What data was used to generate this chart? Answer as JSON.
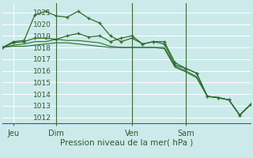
{
  "bg_color": "#cceaea",
  "grid_color": "#ffffff",
  "line_color": "#2d6e2d",
  "marker_color": "#2d6e2d",
  "xlabel_text": "Pression niveau de la mer( hPa )",
  "ylim": [
    1011.5,
    1021.8
  ],
  "yticks": [
    1012,
    1013,
    1014,
    1015,
    1016,
    1017,
    1018,
    1019,
    1020,
    1021
  ],
  "xtick_labels": [
    "Jeu",
    "Dim",
    "Ven",
    "Sam"
  ],
  "xtick_positions": [
    1,
    5,
    12,
    17
  ],
  "vline_positions": [
    5,
    12,
    17
  ],
  "n_points": 24,
  "series": [
    [
      1018.0,
      1018.5,
      1018.6,
      1020.8,
      1021.1,
      1020.7,
      1020.6,
      1021.1,
      1020.5,
      1020.1,
      1019.0,
      1018.5,
      1018.8,
      1018.3,
      1018.5,
      1018.5,
      1016.7,
      1016.2,
      1015.8,
      1013.8,
      1013.7,
      1013.5,
      1012.2,
      1013.1
    ],
    [
      1018.0,
      1018.4,
      1018.5,
      1018.8,
      1018.8,
      1018.7,
      1019.0,
      1019.2,
      1018.9,
      1019.0,
      1018.5,
      1018.8,
      1019.0,
      1018.3,
      1018.5,
      1018.3,
      1016.5,
      1016.2,
      1015.8,
      1013.8,
      1013.7,
      1013.5,
      1012.2,
      1013.1
    ],
    [
      1018.0,
      1018.2,
      1018.3,
      1018.5,
      1018.5,
      1018.7,
      1018.6,
      1018.6,
      1018.5,
      1018.4,
      1018.1,
      1018.0,
      1018.0,
      1018.0,
      1018.0,
      1018.0,
      1016.4,
      1016.0,
      1015.5,
      1013.8,
      1013.7,
      1013.5,
      1012.2,
      1013.1
    ],
    [
      1018.0,
      1018.1,
      1018.1,
      1018.2,
      1018.3,
      1018.4,
      1018.4,
      1018.3,
      1018.2,
      1018.1,
      1018.0,
      1018.0,
      1018.0,
      1018.0,
      1018.0,
      1017.9,
      1016.3,
      1015.9,
      1015.4,
      1013.8,
      1013.7,
      1013.5,
      1012.2,
      1013.1
    ]
  ],
  "marker_series": [
    0,
    1
  ]
}
